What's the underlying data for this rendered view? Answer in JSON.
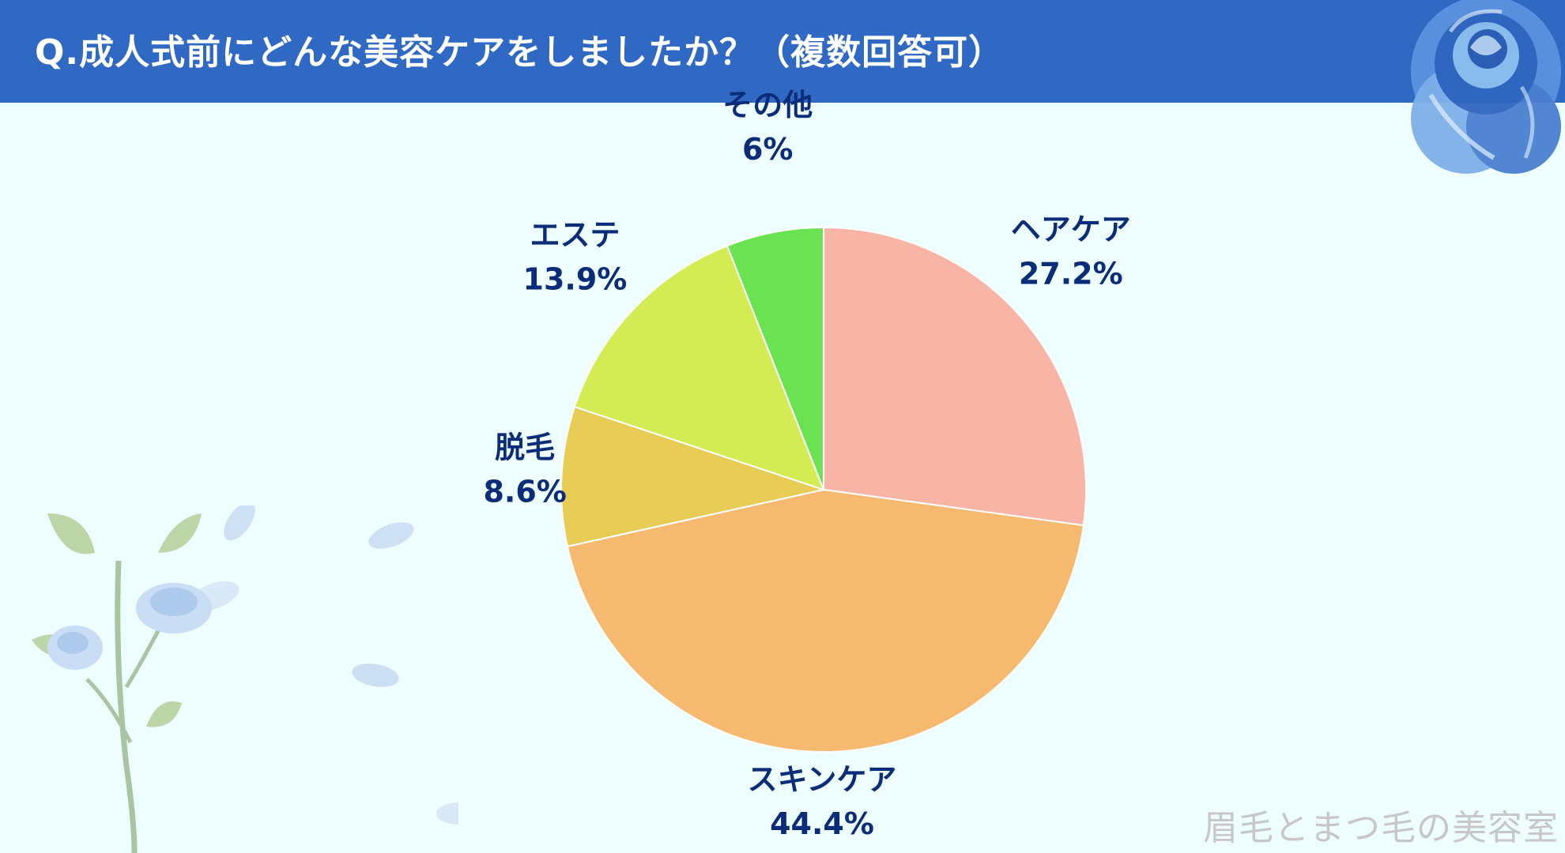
{
  "title": "Q.成人式前にどんな美容ケアをしましたか？（複数回答可）",
  "watermark": "眉毛とまつ毛の美容室",
  "colors": {
    "header": "#3069c4",
    "background": "#eefdfd",
    "label_text": "#0b2c78",
    "watermark": "#c7c7c7"
  },
  "decorations": [
    "blue-rose-top-right",
    "blue-rose-stem-bottom-left",
    "falling-petals"
  ],
  "chart_data": {
    "type": "pie",
    "title": "",
    "start": "12 o'clock, clockwise",
    "slices": [
      {
        "label": "ヘアケア",
        "value": 27.2,
        "value_label": "27.2%",
        "color": "#f8b4a4"
      },
      {
        "label": "スキンケア",
        "value": 44.4,
        "value_label": "44.4%",
        "color": "#f6b970"
      },
      {
        "label": "脱毛",
        "value": 8.6,
        "value_label": "8.6%",
        "color": "#e7cc56"
      },
      {
        "label": "エステ",
        "value": 13.9,
        "value_label": "13.9%",
        "color": "#d3ec53"
      },
      {
        "label": "その他",
        "value": 6,
        "value_label": "6%",
        "color": "#6ae251"
      }
    ]
  }
}
